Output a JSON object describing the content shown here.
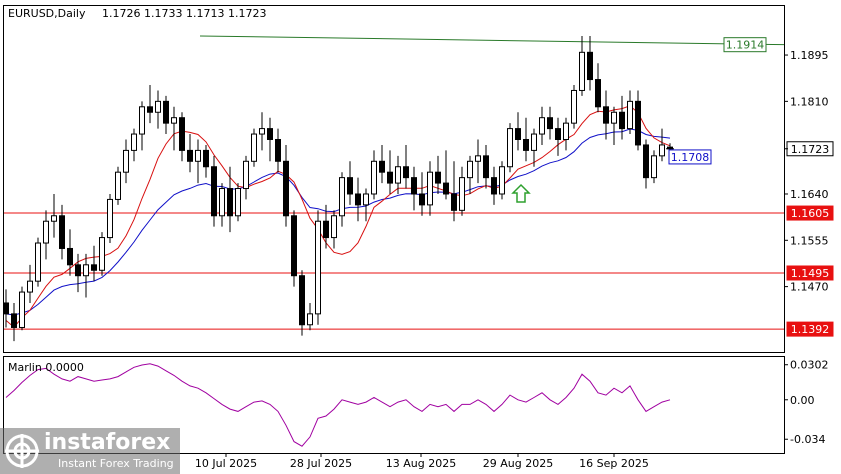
{
  "header": {
    "symbol": "EURUSD,Daily",
    "ohlc": "1.1726 1.1733 1.1713 1.1723"
  },
  "indicator": {
    "label": "Marlin 0.0000",
    "ticks": [
      "0.0302",
      "0.00",
      "-0.034"
    ]
  },
  "watermark": {
    "brand": "instaforex",
    "tagline": "Instant Forex Trading"
  },
  "colors": {
    "candle": "#000000",
    "ma_blue": "#1010c8",
    "ma_red": "#d81010",
    "trend_green": "#2a7a2a",
    "level_red": "#e81010",
    "oscillator": "#a000a0",
    "arrow": "#2ea02e"
  },
  "chart_data": {
    "type": "candlestick",
    "ylim": [
      1.135,
      1.1985
    ],
    "price_ticks": [
      "1.1895",
      "1.1810",
      "1.1723",
      "1.1640",
      "1.1555",
      "1.1470"
    ],
    "x_labels": [
      "10 Jul 2025",
      "28 Jul 2025",
      "13 Aug 2025",
      "29 Aug 2025",
      "16 Sep 2025"
    ],
    "levels": [
      {
        "label": "1.1914",
        "value": 1.1914,
        "color": "#2a7a2a",
        "line": "descending-resistance"
      },
      {
        "label": "1.1708",
        "value": 1.1708,
        "color": "#1010c8",
        "line": "blue-ma"
      },
      {
        "label": "1.1723",
        "value": 1.1723,
        "color": "#000000",
        "line": "current-price"
      },
      {
        "label": "1.1605",
        "value": 1.1605,
        "color": "#e81010",
        "line": "horizontal"
      },
      {
        "label": "1.1495",
        "value": 1.1495,
        "color": "#e81010",
        "line": "horizontal"
      },
      {
        "label": "1.1392",
        "value": 1.1392,
        "color": "#e81010",
        "line": "horizontal"
      }
    ],
    "trend_line": {
      "start": 1.193,
      "end": 1.1914
    },
    "candles": [
      [
        1.144,
        1.1465,
        1.1395,
        1.142
      ],
      [
        1.142,
        1.144,
        1.137,
        1.1395
      ],
      [
        1.1395,
        1.147,
        1.139,
        1.146
      ],
      [
        1.146,
        1.151,
        1.144,
        1.148
      ],
      [
        1.148,
        1.156,
        1.147,
        1.155
      ],
      [
        1.155,
        1.161,
        1.152,
        1.159
      ],
      [
        1.159,
        1.164,
        1.156,
        1.16
      ],
      [
        1.16,
        1.162,
        1.152,
        1.154
      ],
      [
        1.154,
        1.1575,
        1.149,
        1.151
      ],
      [
        1.151,
        1.153,
        1.146,
        1.149
      ],
      [
        1.149,
        1.153,
        1.145,
        1.151
      ],
      [
        1.151,
        1.1545,
        1.148,
        1.15
      ],
      [
        1.15,
        1.157,
        1.149,
        1.156
      ],
      [
        1.156,
        1.164,
        1.155,
        1.163
      ],
      [
        1.163,
        1.169,
        1.162,
        1.168
      ],
      [
        1.168,
        1.174,
        1.166,
        1.172
      ],
      [
        1.172,
        1.176,
        1.17,
        1.175
      ],
      [
        1.175,
        1.181,
        1.172,
        1.18
      ],
      [
        1.18,
        1.184,
        1.177,
        1.179
      ],
      [
        1.179,
        1.183,
        1.176,
        1.181
      ],
      [
        1.181,
        1.182,
        1.175,
        1.177
      ],
      [
        1.177,
        1.18,
        1.172,
        1.178
      ],
      [
        1.178,
        1.179,
        1.17,
        1.172
      ],
      [
        1.172,
        1.175,
        1.168,
        1.17
      ],
      [
        1.17,
        1.174,
        1.166,
        1.172
      ],
      [
        1.172,
        1.173,
        1.167,
        1.169
      ],
      [
        1.169,
        1.171,
        1.158,
        1.16
      ],
      [
        1.16,
        1.166,
        1.158,
        1.165
      ],
      [
        1.165,
        1.169,
        1.157,
        1.16
      ],
      [
        1.16,
        1.166,
        1.159,
        1.165
      ],
      [
        1.165,
        1.171,
        1.163,
        1.17
      ],
      [
        1.17,
        1.176,
        1.169,
        1.175
      ],
      [
        1.175,
        1.179,
        1.172,
        1.176
      ],
      [
        1.176,
        1.178,
        1.17,
        1.174
      ],
      [
        1.174,
        1.176,
        1.168,
        1.17
      ],
      [
        1.17,
        1.173,
        1.158,
        1.16
      ],
      [
        1.16,
        1.161,
        1.147,
        1.149
      ],
      [
        1.149,
        1.15,
        1.138,
        1.14
      ],
      [
        1.14,
        1.144,
        1.139,
        1.142
      ],
      [
        1.142,
        1.161,
        1.14,
        1.159
      ],
      [
        1.159,
        1.162,
        1.154,
        1.156
      ],
      [
        1.156,
        1.161,
        1.154,
        1.16
      ],
      [
        1.16,
        1.168,
        1.158,
        1.167
      ],
      [
        1.167,
        1.17,
        1.162,
        1.164
      ],
      [
        1.164,
        1.167,
        1.159,
        1.162
      ],
      [
        1.162,
        1.165,
        1.159,
        1.164
      ],
      [
        1.164,
        1.172,
        1.163,
        1.17
      ],
      [
        1.17,
        1.173,
        1.166,
        1.168
      ],
      [
        1.168,
        1.172,
        1.164,
        1.166
      ],
      [
        1.166,
        1.171,
        1.164,
        1.169
      ],
      [
        1.169,
        1.173,
        1.165,
        1.167
      ],
      [
        1.167,
        1.169,
        1.161,
        1.164
      ],
      [
        1.164,
        1.168,
        1.16,
        1.162
      ],
      [
        1.162,
        1.17,
        1.16,
        1.168
      ],
      [
        1.168,
        1.171,
        1.164,
        1.166
      ],
      [
        1.166,
        1.172,
        1.163,
        1.164
      ],
      [
        1.164,
        1.17,
        1.159,
        1.161
      ],
      [
        1.161,
        1.169,
        1.16,
        1.167
      ],
      [
        1.167,
        1.171,
        1.164,
        1.17
      ],
      [
        1.17,
        1.174,
        1.166,
        1.171
      ],
      [
        1.171,
        1.173,
        1.165,
        1.167
      ],
      [
        1.167,
        1.169,
        1.162,
        1.164
      ],
      [
        1.164,
        1.17,
        1.163,
        1.169
      ],
      [
        1.169,
        1.177,
        1.168,
        1.176
      ],
      [
        1.176,
        1.179,
        1.172,
        1.174
      ],
      [
        1.174,
        1.178,
        1.17,
        1.172
      ],
      [
        1.172,
        1.176,
        1.169,
        1.175
      ],
      [
        1.175,
        1.18,
        1.173,
        1.178
      ],
      [
        1.178,
        1.18,
        1.174,
        1.176
      ],
      [
        1.176,
        1.178,
        1.171,
        1.174
      ],
      [
        1.174,
        1.178,
        1.172,
        1.177
      ],
      [
        1.177,
        1.184,
        1.176,
        1.183
      ],
      [
        1.183,
        1.193,
        1.182,
        1.19
      ],
      [
        1.19,
        1.193,
        1.183,
        1.185
      ],
      [
        1.185,
        1.188,
        1.179,
        1.18
      ],
      [
        1.18,
        1.183,
        1.174,
        1.177
      ],
      [
        1.177,
        1.18,
        1.173,
        1.179
      ],
      [
        1.179,
        1.182,
        1.174,
        1.176
      ],
      [
        1.176,
        1.183,
        1.175,
        1.181
      ],
      [
        1.181,
        1.183,
        1.172,
        1.173
      ],
      [
        1.173,
        1.174,
        1.165,
        1.167
      ],
      [
        1.167,
        1.172,
        1.166,
        1.171
      ],
      [
        1.171,
        1.176,
        1.17,
        1.173
      ],
      [
        1.1726,
        1.1733,
        1.1713,
        1.1723
      ]
    ],
    "oscillator": {
      "name": "Marlin",
      "ylim": [
        -0.045,
        0.036
      ],
      "values": [
        0.002,
        0.008,
        0.015,
        0.021,
        0.026,
        0.027,
        0.022,
        0.018,
        0.016,
        0.02,
        0.018,
        0.016,
        0.017,
        0.018,
        0.02,
        0.024,
        0.028,
        0.03,
        0.031,
        0.029,
        0.025,
        0.021,
        0.016,
        0.012,
        0.01,
        0.006,
        0.001,
        -0.004,
        -0.008,
        -0.01,
        -0.006,
        -0.002,
        -0.001,
        -0.004,
        -0.01,
        -0.022,
        -0.036,
        -0.04,
        -0.032,
        -0.016,
        -0.014,
        -0.008,
        0.0,
        -0.002,
        -0.004,
        -0.002,
        0.002,
        -0.002,
        -0.006,
        -0.002,
        0.0,
        -0.006,
        -0.01,
        -0.004,
        -0.006,
        -0.004,
        -0.01,
        -0.004,
        -0.004,
        0.0,
        -0.004,
        -0.01,
        -0.004,
        0.004,
        0.0,
        -0.002,
        0.002,
        0.006,
        0.0,
        -0.004,
        0.002,
        0.01,
        0.022,
        0.016,
        0.006,
        0.004,
        0.01,
        0.006,
        0.012,
        0.0,
        -0.01,
        -0.006,
        -0.002,
        0.0
      ]
    }
  }
}
